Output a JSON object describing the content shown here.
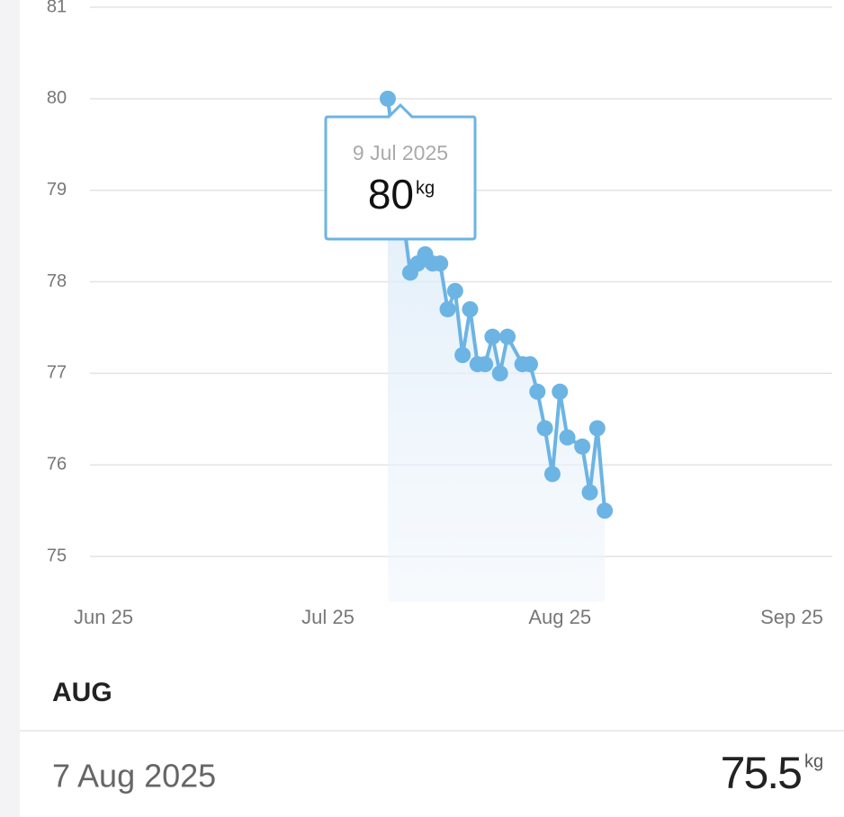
{
  "chart_data": {
    "type": "line",
    "x": [
      "2025-07-09",
      "2025-07-12",
      "2025-07-13",
      "2025-07-14",
      "2025-07-15",
      "2025-07-16",
      "2025-07-17",
      "2025-07-18",
      "2025-07-19",
      "2025-07-20",
      "2025-07-21",
      "2025-07-22",
      "2025-07-23",
      "2025-07-24",
      "2025-07-25",
      "2025-07-27",
      "2025-07-28",
      "2025-07-29",
      "2025-07-30",
      "2025-07-31",
      "2025-08-01",
      "2025-08-02",
      "2025-08-04",
      "2025-08-05",
      "2025-08-06",
      "2025-08-07"
    ],
    "values": [
      80,
      78.1,
      78.2,
      78.3,
      78.2,
      78.2,
      77.7,
      77.9,
      77.2,
      77.7,
      77.1,
      77.1,
      77.4,
      77.0,
      77.4,
      77.1,
      77.1,
      76.8,
      76.4,
      75.9,
      76.8,
      76.3,
      76.2,
      75.7,
      76.4,
      75.5
    ],
    "color": "#6cb4e4",
    "ylim": [
      74.5,
      81
    ],
    "yticks": [
      75,
      76,
      77,
      78,
      79,
      80,
      81
    ],
    "xlim": [
      "2025-06-01",
      "2025-09-01"
    ],
    "xticks": [
      {
        "value": "2025-06-01",
        "label": "Jun 25"
      },
      {
        "value": "2025-07-01",
        "label": "Jul 25"
      },
      {
        "value": "2025-08-01",
        "label": "Aug 25"
      },
      {
        "value": "2025-09-01",
        "label": "Sep 25"
      }
    ],
    "grid": true
  },
  "tooltip": {
    "date": "9 Jul 2025",
    "value": "80",
    "unit": "kg"
  },
  "section": {
    "title": "AUG"
  },
  "entry": {
    "date": "7 Aug 2025",
    "value": "75.5",
    "unit": "kg"
  }
}
